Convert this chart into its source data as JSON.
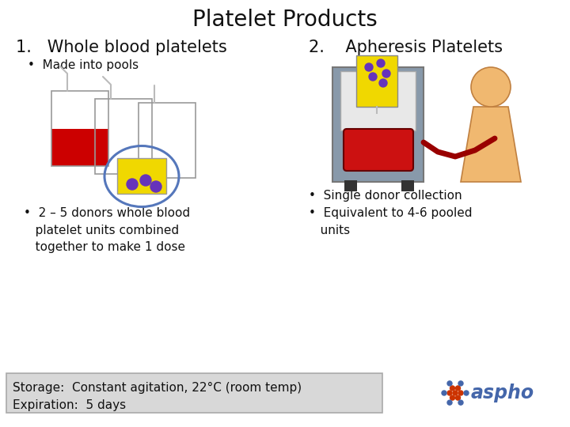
{
  "title": "Platelet Products",
  "title_fontsize": 20,
  "bg_color": "#ffffff",
  "left_heading": "1.   Whole blood platelets",
  "right_heading": "2.    Apheresis Platelets",
  "left_bullet1": "•  Made into pools",
  "left_bullet2": "•  2 – 5 donors whole blood\n   platelet units combined\n   together to make 1 dose",
  "right_bullet1": "•  Single donor collection",
  "right_bullet2": "•  Equivalent to 4-6 pooled\n   units",
  "storage_text": "Storage:  Constant agitation, 22°C (room temp)\nExpiration:  5 days",
  "heading_fontsize": 15,
  "bullet_fontsize": 11,
  "storage_fontsize": 11,
  "aspho_text": "aspho",
  "aspho_fontsize": 17
}
